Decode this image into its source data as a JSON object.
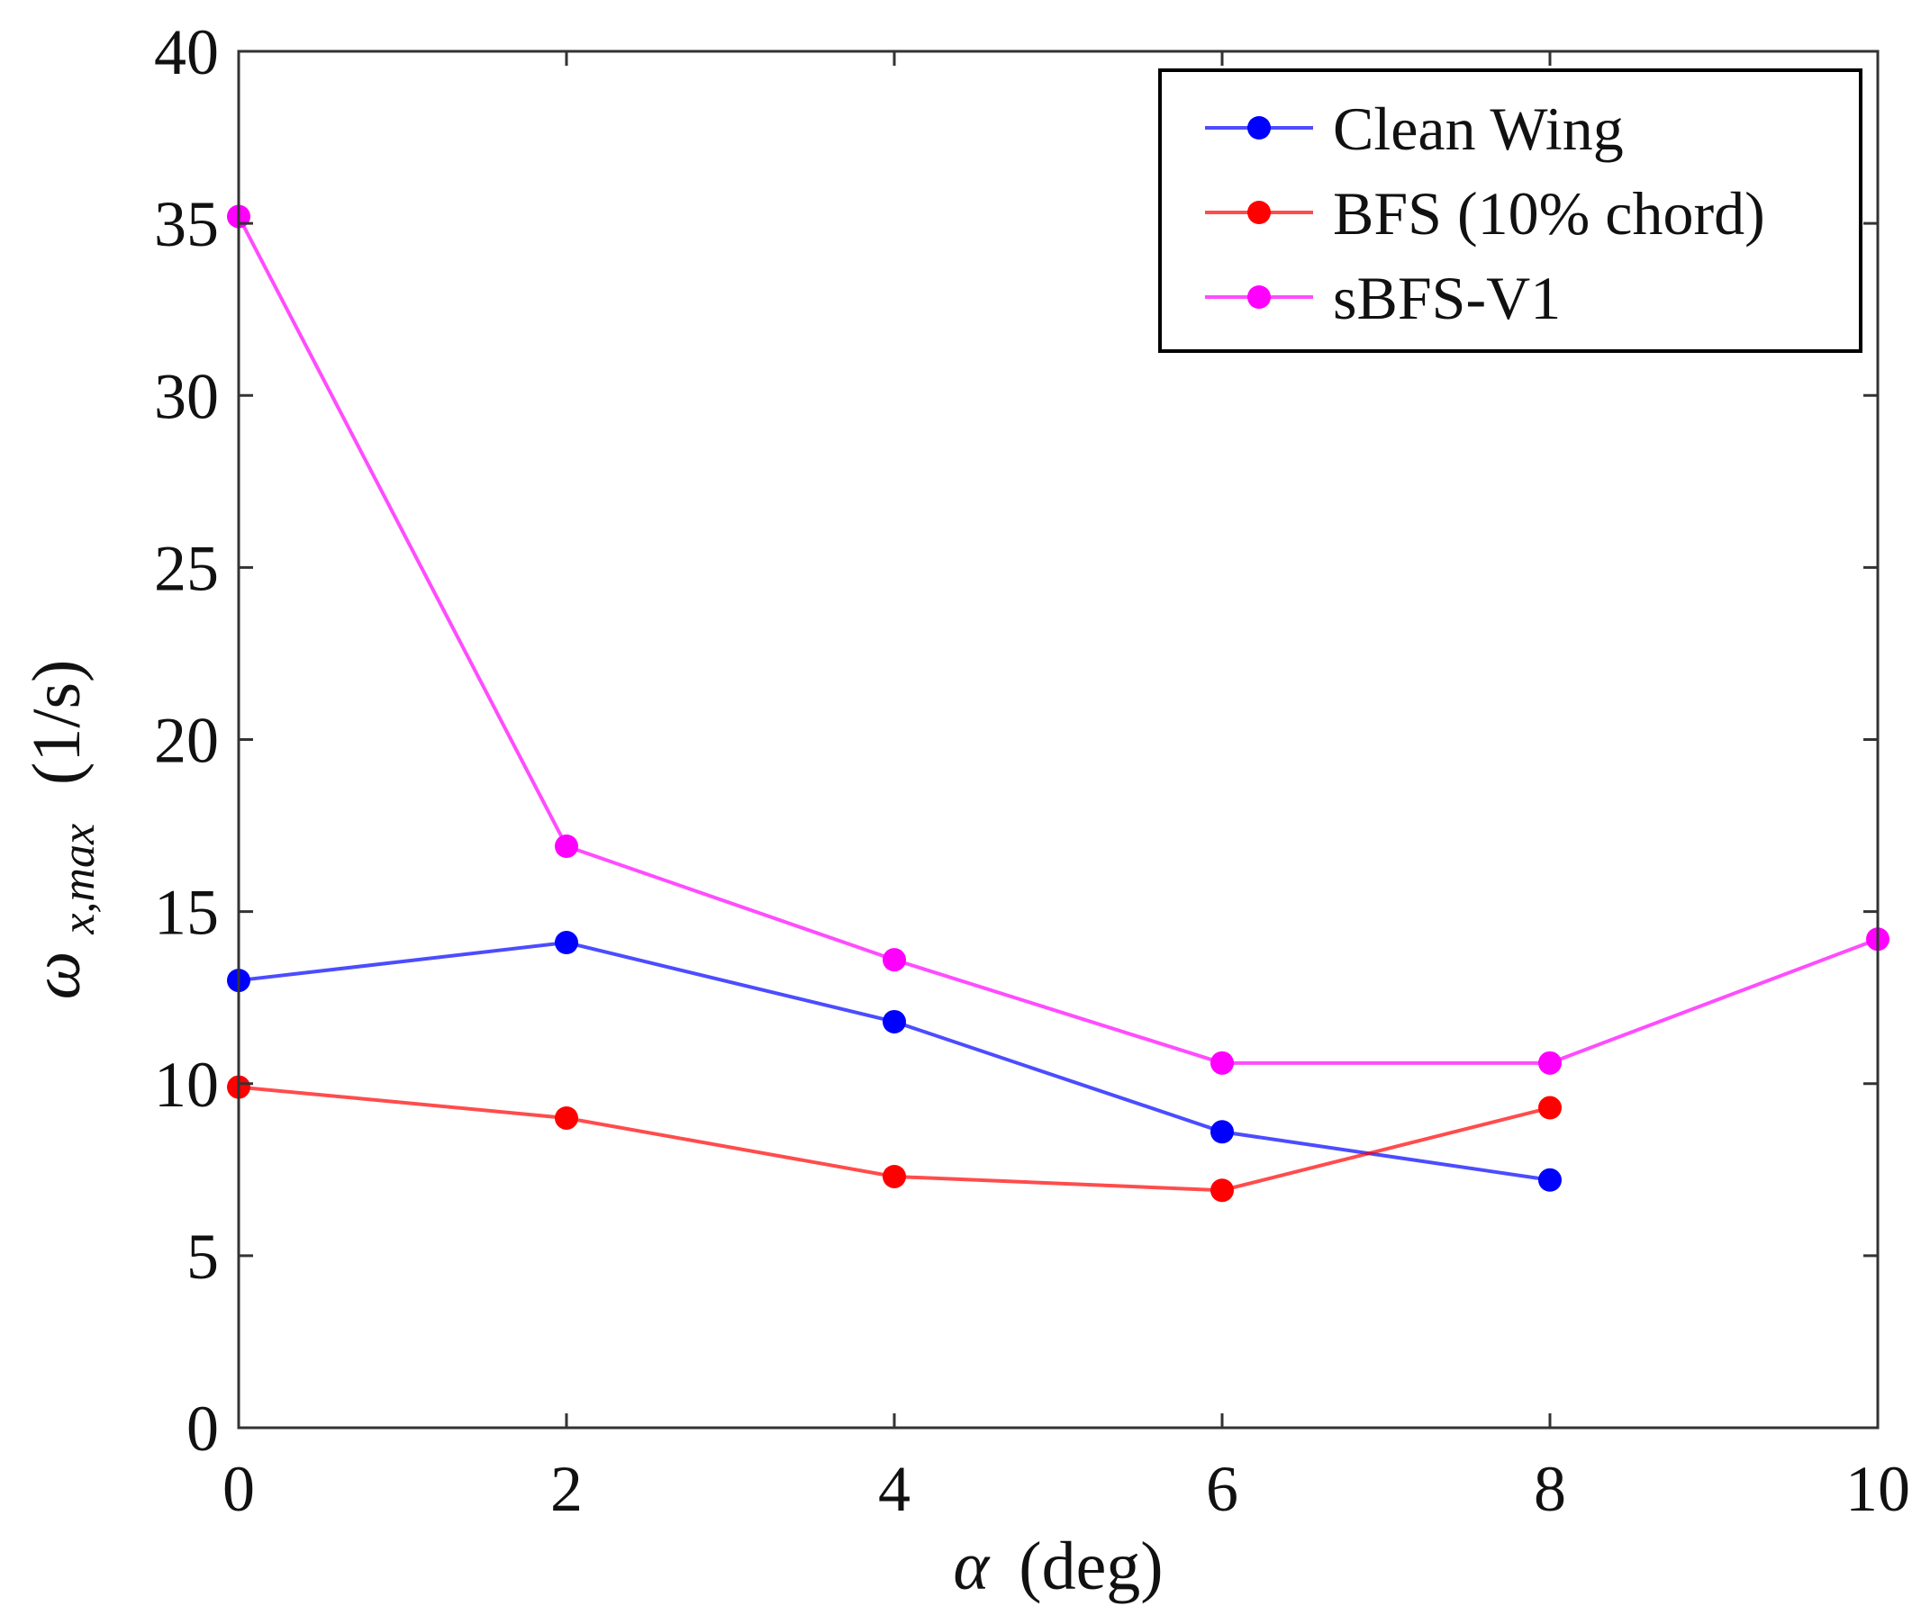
{
  "chart_data": {
    "type": "line",
    "title": "",
    "xlabel_symbol": "α",
    "xlabel_unit": "(deg)",
    "ylabel_symbol": "ω",
    "ylabel_subscript": "x,max",
    "ylabel_unit": "(1/s)",
    "xlim": [
      0,
      10
    ],
    "ylim": [
      0,
      40
    ],
    "xticks": [
      0,
      2,
      4,
      6,
      8,
      10
    ],
    "yticks": [
      0,
      5,
      10,
      15,
      20,
      25,
      30,
      35,
      40
    ],
    "grid": false,
    "legend_position": "top-right",
    "series": [
      {
        "name": "Clean Wing",
        "color": "#0000ff",
        "x": [
          0,
          2,
          4,
          6,
          8
        ],
        "values": [
          13.0,
          14.1,
          11.8,
          8.6,
          7.2
        ]
      },
      {
        "name": "BFS (10% chord)",
        "color": "#ff0000",
        "x": [
          0,
          2,
          4,
          6,
          8
        ],
        "values": [
          9.9,
          9.0,
          7.3,
          6.9,
          9.3
        ]
      },
      {
        "name": "sBFS-V1",
        "color": "#ff00ff",
        "x": [
          0,
          2,
          4,
          6,
          8,
          10
        ],
        "values": [
          35.2,
          16.9,
          13.6,
          10.6,
          10.6,
          14.2
        ]
      }
    ]
  }
}
